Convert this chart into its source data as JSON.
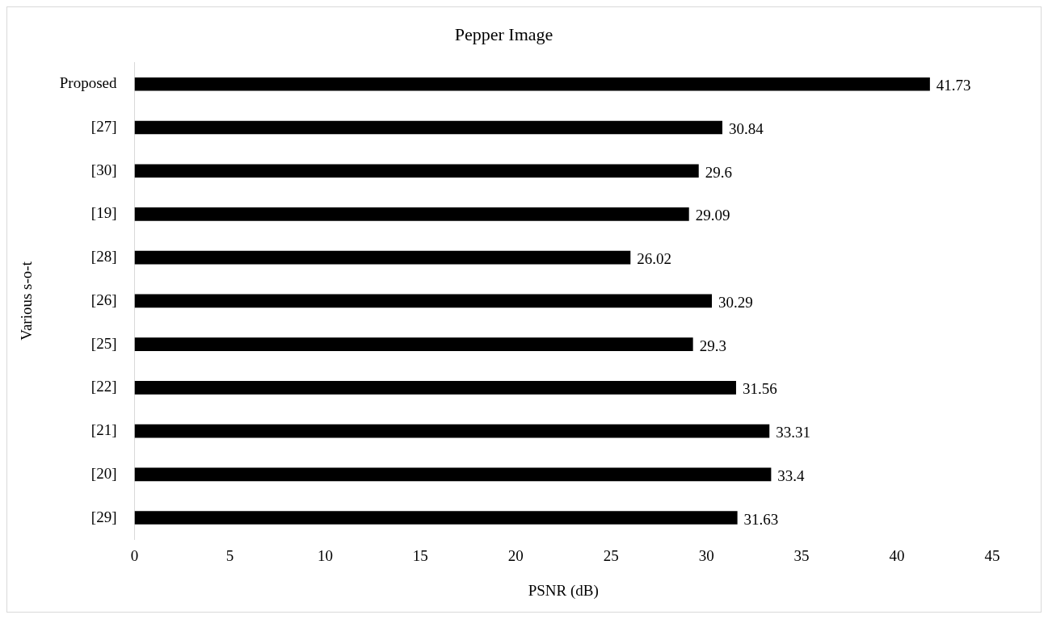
{
  "chart_data": {
    "type": "bar",
    "orientation": "horizontal",
    "title": "Pepper Image",
    "xlabel": "PSNR (dB)",
    "ylabel": "Various s-o-t",
    "categories": [
      "Proposed",
      "[27]",
      "[30]",
      "[19]",
      "[28]",
      "[26]",
      "[25]",
      "[22]",
      "[21]",
      "[20]",
      "[29]"
    ],
    "values": [
      41.73,
      30.84,
      29.6,
      29.09,
      26.02,
      30.29,
      29.3,
      31.56,
      33.31,
      33.4,
      31.63
    ],
    "color": "#000000",
    "xlim": [
      0,
      45
    ],
    "xticks": [
      0,
      5,
      10,
      15,
      20,
      25,
      30,
      35,
      40,
      45
    ],
    "grid": false,
    "legend": false,
    "data_labels": true
  }
}
